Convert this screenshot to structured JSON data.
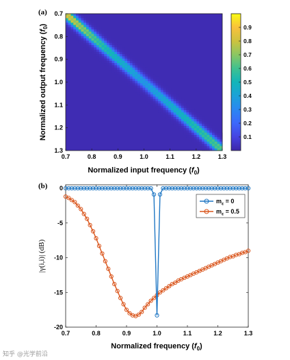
{
  "watermark": "知乎 @光学前沿",
  "chart_data": [
    {
      "panel_label": "(a)",
      "type": "heatmap",
      "xlabel": "Normalized input frequency (f0)",
      "xlabel_main": "Normalized input frequency (",
      "xlabel_sym": "f",
      "xlabel_sub": "0",
      "xlabel_end": ")",
      "ylabel_main": "Normalized output frequency (",
      "ylabel_sym": "f",
      "ylabel_sub": "0",
      "ylabel_end": ")",
      "x_range": [
        0.7,
        1.3
      ],
      "y_range": [
        0.7,
        1.3
      ],
      "y_inverted": true,
      "grid_points": 61,
      "xticks": [
        "0.7",
        "0.8",
        "0.9",
        "1.0",
        "1.1",
        "1.2",
        "1.3"
      ],
      "yticks": [
        "0.7",
        "0.8",
        "0.9",
        "1.0",
        "1.1",
        "1.2",
        "1.3"
      ],
      "colorbar": {
        "range": [
          0,
          1
        ],
        "ticks": [
          "0.1",
          "0.2",
          "0.3",
          "0.4",
          "0.5",
          "0.6",
          "0.7",
          "0.8",
          "0.9"
        ],
        "tick_values": [
          0.1,
          0.2,
          0.3,
          0.4,
          0.5,
          0.6,
          0.7,
          0.8,
          0.9
        ],
        "colormap": "parula"
      },
      "diagonal_peak": [
        [
          0.7,
          0.95
        ],
        [
          0.85,
          0.6
        ],
        [
          1.0,
          0.4
        ],
        [
          1.15,
          0.55
        ],
        [
          1.3,
          0.72
        ]
      ],
      "band_halfwidth_fraction": 0.03
    },
    {
      "panel_label": "(b)",
      "type": "line",
      "xlabel_main": "Normalized frequency (",
      "xlabel_sym": "f",
      "xlabel_sub": "0",
      "xlabel_end": ")",
      "ylabel": "|γ(i,i)| (dB)",
      "xlim": [
        0.7,
        1.3
      ],
      "ylim": [
        -20,
        0.5
      ],
      "xticks": [
        "0.7",
        "0.8",
        "0.9",
        "1.0",
        "1.1",
        "1.2",
        "1.3"
      ],
      "yticks": [
        "0",
        "-5",
        "-10",
        "-15",
        "-20"
      ],
      "ytick_values": [
        0,
        -5,
        -10,
        -15,
        -20
      ],
      "legend_position": "top-right",
      "series": [
        {
          "name": "m_ε = 0",
          "legend_main": "m",
          "legend_sub": "ε",
          "legend_value": " = 0",
          "color": "#1f77c4",
          "x": [
            0.7,
            0.71,
            0.72,
            0.73,
            0.74,
            0.75,
            0.76,
            0.77,
            0.78,
            0.79,
            0.8,
            0.81,
            0.82,
            0.83,
            0.84,
            0.85,
            0.86,
            0.87,
            0.88,
            0.89,
            0.9,
            0.91,
            0.92,
            0.93,
            0.94,
            0.95,
            0.96,
            0.97,
            0.98,
            0.99,
            1.0,
            1.01,
            1.02,
            1.03,
            1.04,
            1.05,
            1.06,
            1.07,
            1.08,
            1.09,
            1.1,
            1.11,
            1.12,
            1.13,
            1.14,
            1.15,
            1.16,
            1.17,
            1.18,
            1.19,
            1.2,
            1.21,
            1.22,
            1.23,
            1.24,
            1.25,
            1.26,
            1.27,
            1.28,
            1.29,
            1.3
          ],
          "y": [
            0,
            0,
            0,
            0,
            0,
            0,
            0,
            0,
            0,
            0,
            0,
            0,
            0,
            0,
            0,
            0,
            0,
            0,
            0,
            0,
            0,
            0,
            0,
            0,
            0,
            0,
            0,
            0,
            0,
            -0.9,
            -18.3,
            -0.9,
            0,
            0,
            0,
            0,
            0,
            0,
            0,
            0,
            0,
            0,
            0,
            0,
            0,
            0,
            0,
            0,
            0,
            0,
            0,
            0,
            0,
            0,
            0,
            0,
            0,
            0,
            0,
            0,
            0
          ]
        },
        {
          "name": "m_ε = 0.5",
          "legend_main": "m",
          "legend_sub": "ε",
          "legend_value": " = 0.5",
          "color": "#d95319",
          "x": [
            0.7,
            0.71,
            0.72,
            0.73,
            0.74,
            0.75,
            0.76,
            0.77,
            0.78,
            0.79,
            0.8,
            0.81,
            0.82,
            0.83,
            0.84,
            0.85,
            0.86,
            0.87,
            0.88,
            0.89,
            0.9,
            0.91,
            0.92,
            0.93,
            0.94,
            0.95,
            0.96,
            0.97,
            0.98,
            0.99,
            1.0,
            1.01,
            1.02,
            1.03,
            1.04,
            1.05,
            1.06,
            1.07,
            1.08,
            1.09,
            1.1,
            1.11,
            1.12,
            1.13,
            1.14,
            1.15,
            1.16,
            1.17,
            1.18,
            1.19,
            1.2,
            1.21,
            1.22,
            1.23,
            1.24,
            1.25,
            1.26,
            1.27,
            1.28,
            1.29,
            1.3
          ],
          "y": [
            -1.2,
            -1.4,
            -1.7,
            -2.0,
            -2.5,
            -3.0,
            -3.7,
            -4.4,
            -5.3,
            -6.2,
            -7.2,
            -8.3,
            -9.4,
            -10.5,
            -11.6,
            -12.7,
            -13.8,
            -14.8,
            -15.8,
            -16.7,
            -17.5,
            -18.0,
            -18.3,
            -18.4,
            -18.2,
            -17.8,
            -17.2,
            -16.7,
            -16.2,
            -15.8,
            -15.4,
            -15.0,
            -14.7,
            -14.4,
            -14.1,
            -13.8,
            -13.6,
            -13.3,
            -13.1,
            -12.9,
            -12.7,
            -12.5,
            -12.3,
            -12.1,
            -11.9,
            -11.7,
            -11.5,
            -11.3,
            -11.1,
            -10.9,
            -10.7,
            -10.5,
            -10.3,
            -10.1,
            -9.9,
            -9.8,
            -9.6,
            -9.5,
            -9.3,
            -9.2,
            -9.0
          ]
        }
      ]
    }
  ]
}
